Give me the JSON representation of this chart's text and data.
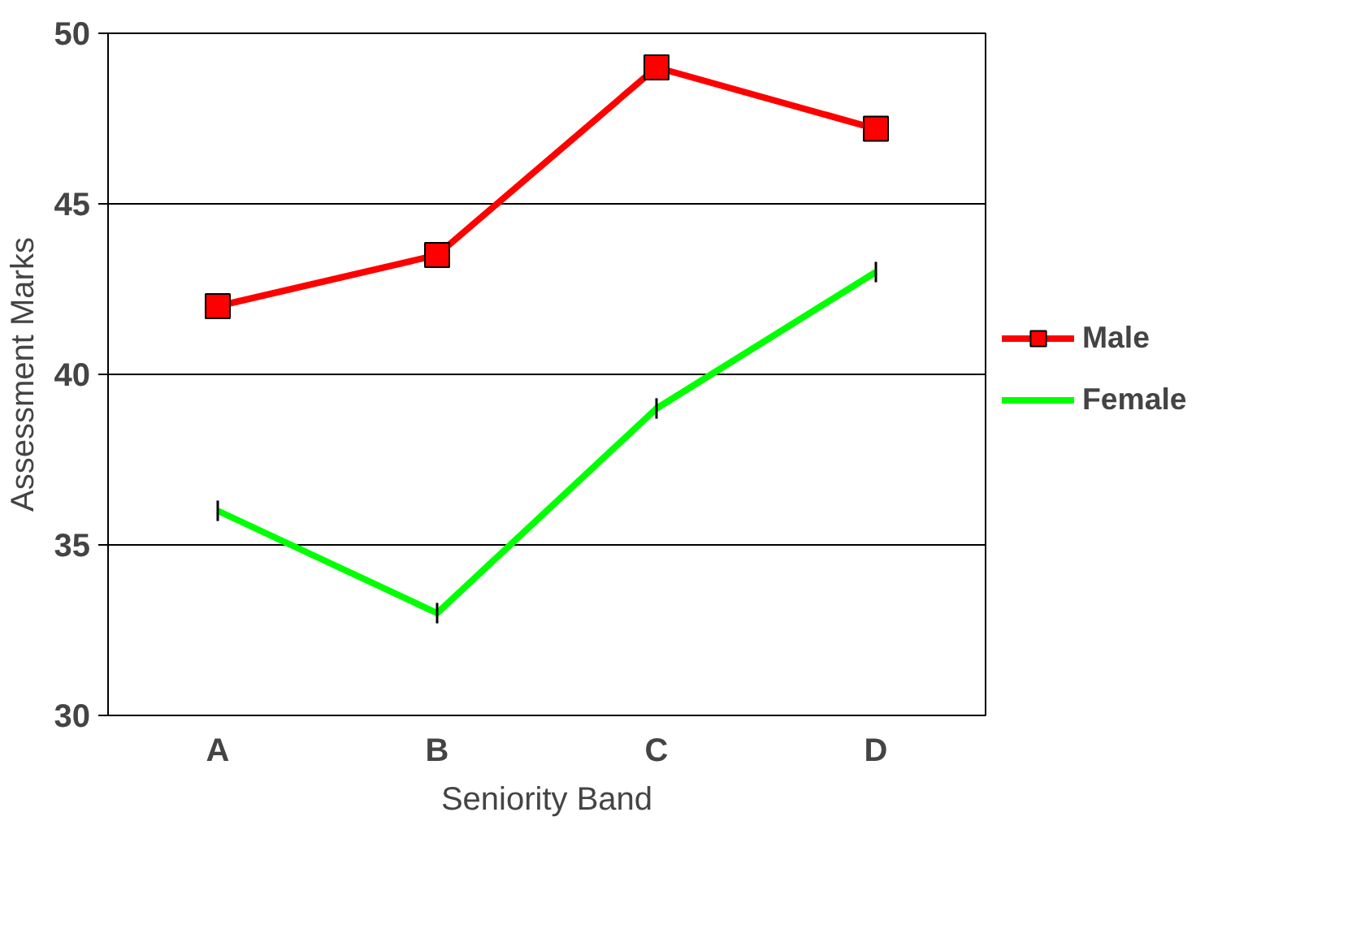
{
  "chart_data": {
    "type": "line",
    "xlabel": "Seniority Band",
    "ylabel": "Assessment Marks",
    "categories": [
      "A",
      "B",
      "C",
      "D"
    ],
    "series": [
      {
        "name": "Male",
        "color": "#ff0000",
        "values": [
          42,
          43.5,
          49,
          47.2
        ],
        "marker": "square"
      },
      {
        "name": "Female",
        "color": "#00ff00",
        "values": [
          36,
          33,
          39,
          43
        ],
        "marker": "none",
        "errors": [
          0.3,
          0.3,
          0.3,
          0.3
        ]
      }
    ],
    "ylim": [
      30,
      50
    ],
    "yticks": [
      30,
      35,
      40,
      45,
      50
    ],
    "grid": "y",
    "legend": "right"
  }
}
